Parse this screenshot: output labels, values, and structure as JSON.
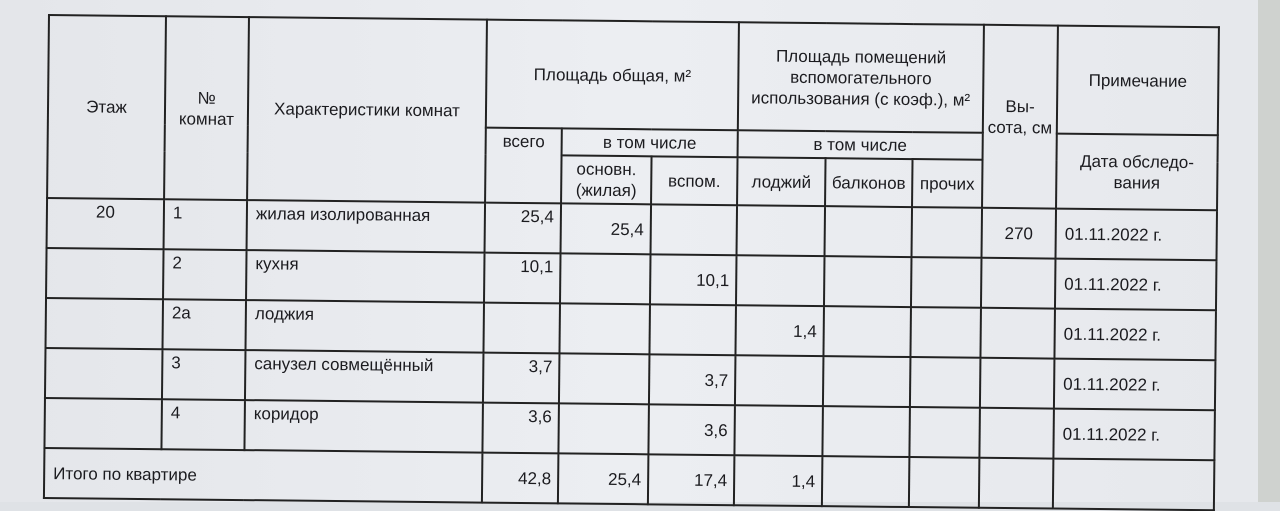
{
  "headers": {
    "floor": "Этаж",
    "room_no": "№ комнат",
    "characteristics": "Характеристики комнат",
    "total_area": "Площадь общая, м²",
    "aux_area": "Площадь помещений вспомогательного использования (с коэф.), м²",
    "height": "Вы- сота, см",
    "note": "Примечание",
    "all": "всего",
    "including1": "в том числе",
    "including2": "в том числе",
    "main": "основн. (жилая)",
    "aux": "вспом.",
    "loggias": "лоджий",
    "balconies": "балконов",
    "other": "прочих",
    "survey_date": "Дата обследо- вания"
  },
  "rows": [
    {
      "floor": "20",
      "room": "1",
      "name": "жилая изолированная",
      "total": "25,4",
      "main": "25,4",
      "aux": "",
      "loggia": "",
      "balcony": "",
      "other": "",
      "height": "270",
      "date": "01.11.2022 г."
    },
    {
      "floor": "",
      "room": "2",
      "name": "кухня",
      "total": "10,1",
      "main": "",
      "aux": "10,1",
      "loggia": "",
      "balcony": "",
      "other": "",
      "height": "",
      "date": "01.11.2022 г."
    },
    {
      "floor": "",
      "room": "2а",
      "name": "лоджия",
      "total": "",
      "main": "",
      "aux": "",
      "loggia": "1,4",
      "balcony": "",
      "other": "",
      "height": "",
      "date": "01.11.2022 г."
    },
    {
      "floor": "",
      "room": "3",
      "name": "санузел совмещённый",
      "total": "3,7",
      "main": "",
      "aux": "3,7",
      "loggia": "",
      "balcony": "",
      "other": "",
      "height": "",
      "date": "01.11.2022 г."
    },
    {
      "floor": "",
      "room": "4",
      "name": "коридор",
      "total": "3,6",
      "main": "",
      "aux": "3,6",
      "loggia": "",
      "balcony": "",
      "other": "",
      "height": "",
      "date": "01.11.2022 г."
    }
  ],
  "totals": {
    "label": "Итого по квартире",
    "total": "42,8",
    "main": "25,4",
    "aux": "17,4",
    "loggia": "1,4"
  }
}
